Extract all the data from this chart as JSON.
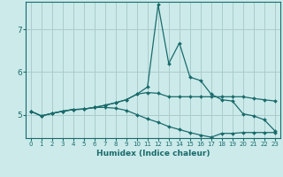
{
  "xlabel": "Humidex (Indice chaleur)",
  "bg_color": "#cceaea",
  "grid_color": "#aacccc",
  "line_color": "#1a6b6b",
  "xlim": [
    -0.5,
    23.5
  ],
  "ylim": [
    4.45,
    7.65
  ],
  "yticks": [
    5,
    6,
    7
  ],
  "xticks": [
    0,
    1,
    2,
    3,
    4,
    5,
    6,
    7,
    8,
    9,
    10,
    11,
    12,
    13,
    14,
    15,
    16,
    17,
    18,
    19,
    20,
    21,
    22,
    23
  ],
  "line1_y": [
    5.08,
    4.97,
    5.03,
    5.08,
    5.12,
    5.13,
    5.17,
    5.22,
    5.28,
    5.35,
    5.48,
    5.65,
    7.58,
    6.2,
    6.68,
    5.88,
    5.8,
    5.48,
    5.35,
    5.32,
    5.02,
    4.97,
    4.88,
    4.62
  ],
  "line2_y": [
    5.08,
    4.97,
    5.03,
    5.08,
    5.12,
    5.13,
    5.17,
    5.22,
    5.28,
    5.35,
    5.48,
    5.52,
    5.5,
    5.42,
    5.42,
    5.42,
    5.42,
    5.42,
    5.42,
    5.42,
    5.42,
    5.38,
    5.35,
    5.32
  ],
  "line3_y": [
    5.08,
    4.97,
    5.03,
    5.08,
    5.12,
    5.13,
    5.17,
    5.17,
    5.15,
    5.1,
    5.0,
    4.9,
    4.82,
    4.72,
    4.65,
    4.58,
    4.52,
    4.47,
    4.56,
    4.56,
    4.58,
    4.58,
    4.58,
    4.58
  ]
}
